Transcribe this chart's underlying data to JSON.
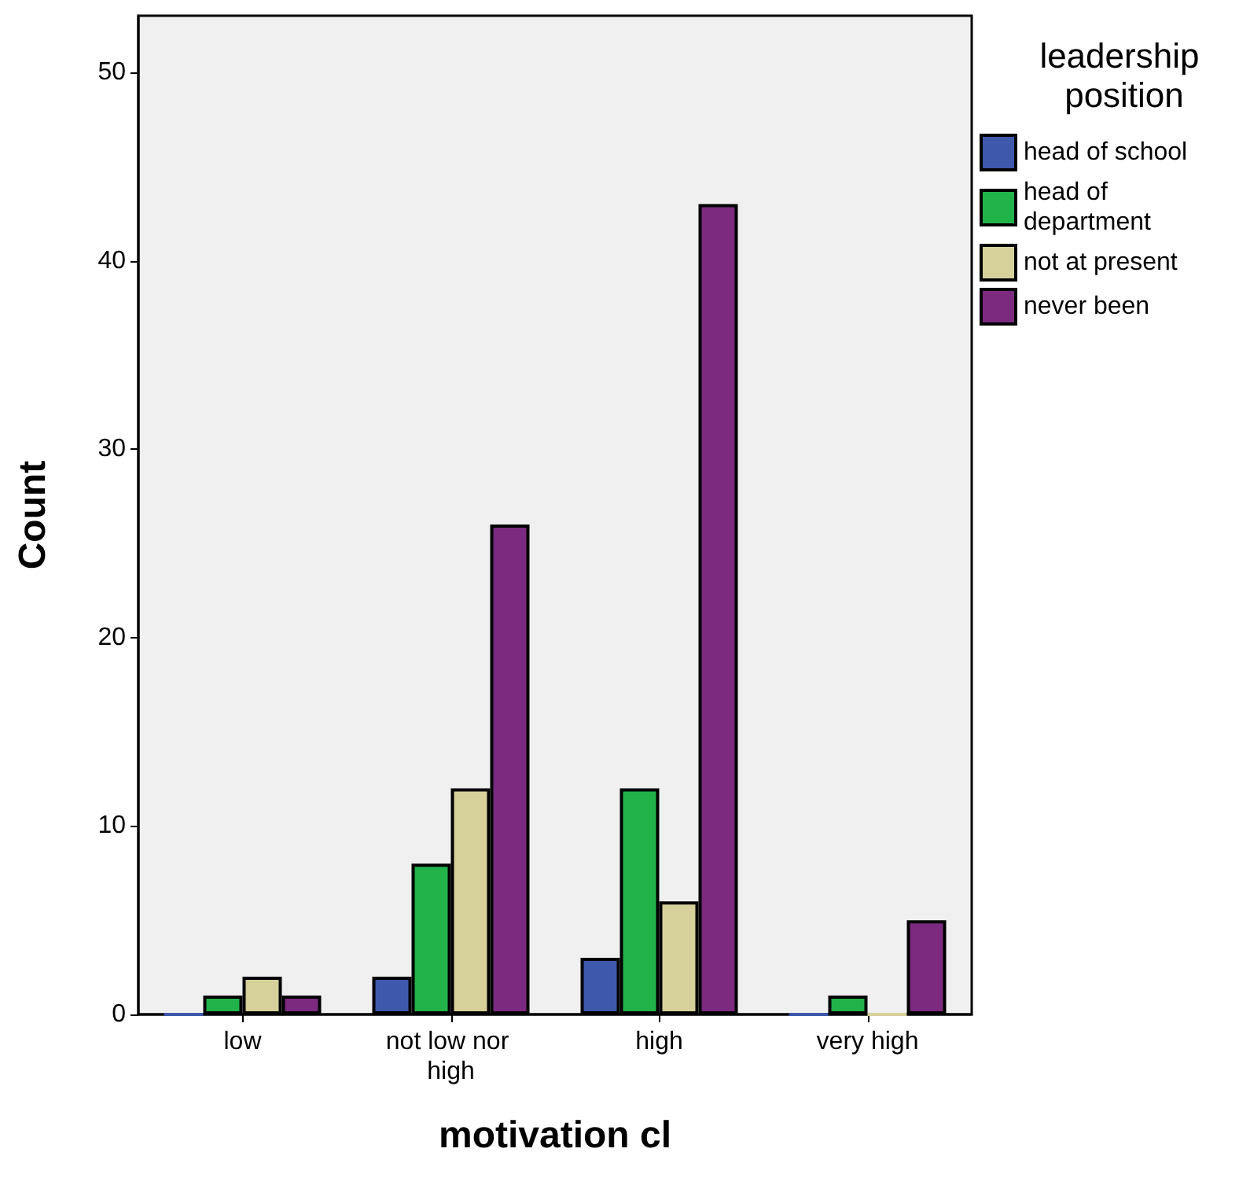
{
  "chart_data": {
    "type": "bar",
    "xlabel": "motivation cl",
    "ylabel": "Count",
    "legend_title": "leadership position",
    "categories": [
      "low",
      "not low nor high",
      "high",
      "very high"
    ],
    "series": [
      {
        "name": "head of school",
        "color": "#3e58ac",
        "values": [
          0,
          2,
          3,
          0
        ]
      },
      {
        "name": "head of department",
        "color": "#22b24a",
        "values": [
          1,
          8,
          12,
          1
        ]
      },
      {
        "name": "not at present",
        "color": "#d6d09b",
        "values": [
          2,
          12,
          6,
          0
        ]
      },
      {
        "name": "never been",
        "color": "#7b2a7f",
        "values": [
          1,
          26,
          43,
          5
        ]
      }
    ],
    "ylim": [
      0,
      53
    ],
    "yticks": [
      0,
      10,
      20,
      30,
      40,
      50
    ],
    "grid": false,
    "legend": "top right"
  }
}
